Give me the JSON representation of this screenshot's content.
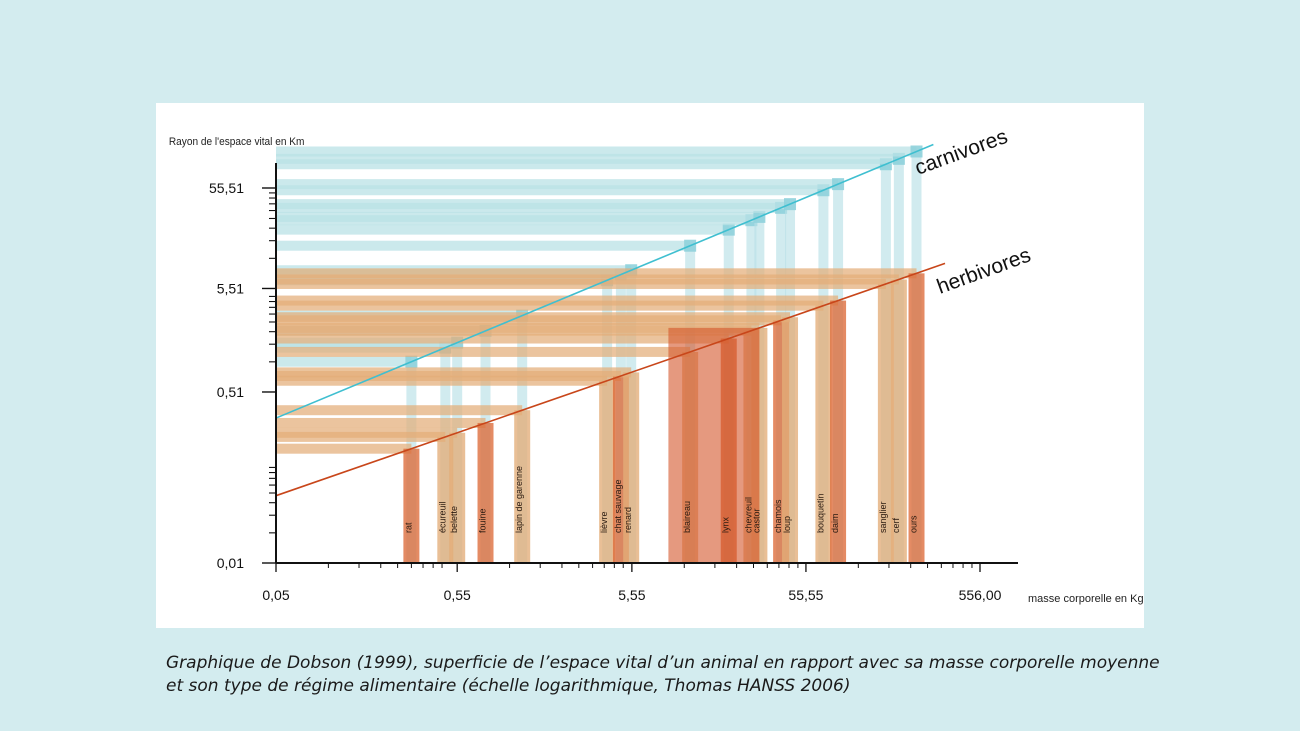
{
  "caption": {
    "line1": "Graphique de Dobson (1999), superficie de l’espace vital d’un animal en rapport avec sa masse corporelle moyenne",
    "line2": "et son type de régime alimentaire (échelle logarithmique, Thomas HANSS 2006)"
  },
  "colors": {
    "background": "#d3ecef",
    "carnivore_line": "#3fbfd0",
    "herbivore_line": "#c8461a",
    "carnivore_band": "#b9e1e6",
    "carnivore_band_dark": "#8fd2dc",
    "herbivore_band": "#e3ad78",
    "herbivore_band_dark": "#dc6a38",
    "herbivore_core": "#d4552a"
  },
  "chart_data": {
    "type": "line",
    "scale": "log-log",
    "ylabel": "Rayon de l'espace vital en Km",
    "xlabel": "masse corporelle en Kg",
    "xlim": [
      0.05,
      556.0
    ],
    "ylim": [
      0.01,
      55.51
    ],
    "x_ticks": [
      "0,05",
      "0,55",
      "5,55",
      "55,55",
      "556,00"
    ],
    "y_ticks": [
      "0,01",
      "0,51",
      "5,51",
      "55,51"
    ],
    "series": [
      {
        "name": "carnivores",
        "x": [
          0.05,
          300
        ],
        "y": [
          0.28,
          151
        ]
      },
      {
        "name": "herbivores",
        "x": [
          0.05,
          350
        ],
        "y": [
          0.047,
          9.8
        ]
      }
    ],
    "animals": [
      {
        "name": "rat",
        "mass": 0.3
      },
      {
        "name": "écureuil",
        "mass": 0.47
      },
      {
        "name": "belette",
        "mass": 0.55
      },
      {
        "name": "fouine",
        "mass": 0.8
      },
      {
        "name": "lapin de garenne",
        "mass": 1.3
      },
      {
        "name": "lièvre",
        "mass": 4.0
      },
      {
        "name": "chat sauvage",
        "mass": 4.8
      },
      {
        "name": "renard",
        "mass": 5.5
      },
      {
        "name": "blaireau",
        "mass": 12
      },
      {
        "name": "lynx",
        "mass": 20
      },
      {
        "name": "chevreuil",
        "mass": 27
      },
      {
        "name": "castor",
        "mass": 30
      },
      {
        "name": "chamois",
        "mass": 40
      },
      {
        "name": "loup",
        "mass": 45
      },
      {
        "name": "bouquetin",
        "mass": 70
      },
      {
        "name": "daim",
        "mass": 85
      },
      {
        "name": "sanglier",
        "mass": 160
      },
      {
        "name": "cerf",
        "mass": 190
      },
      {
        "name": "ours",
        "mass": 240
      }
    ]
  }
}
